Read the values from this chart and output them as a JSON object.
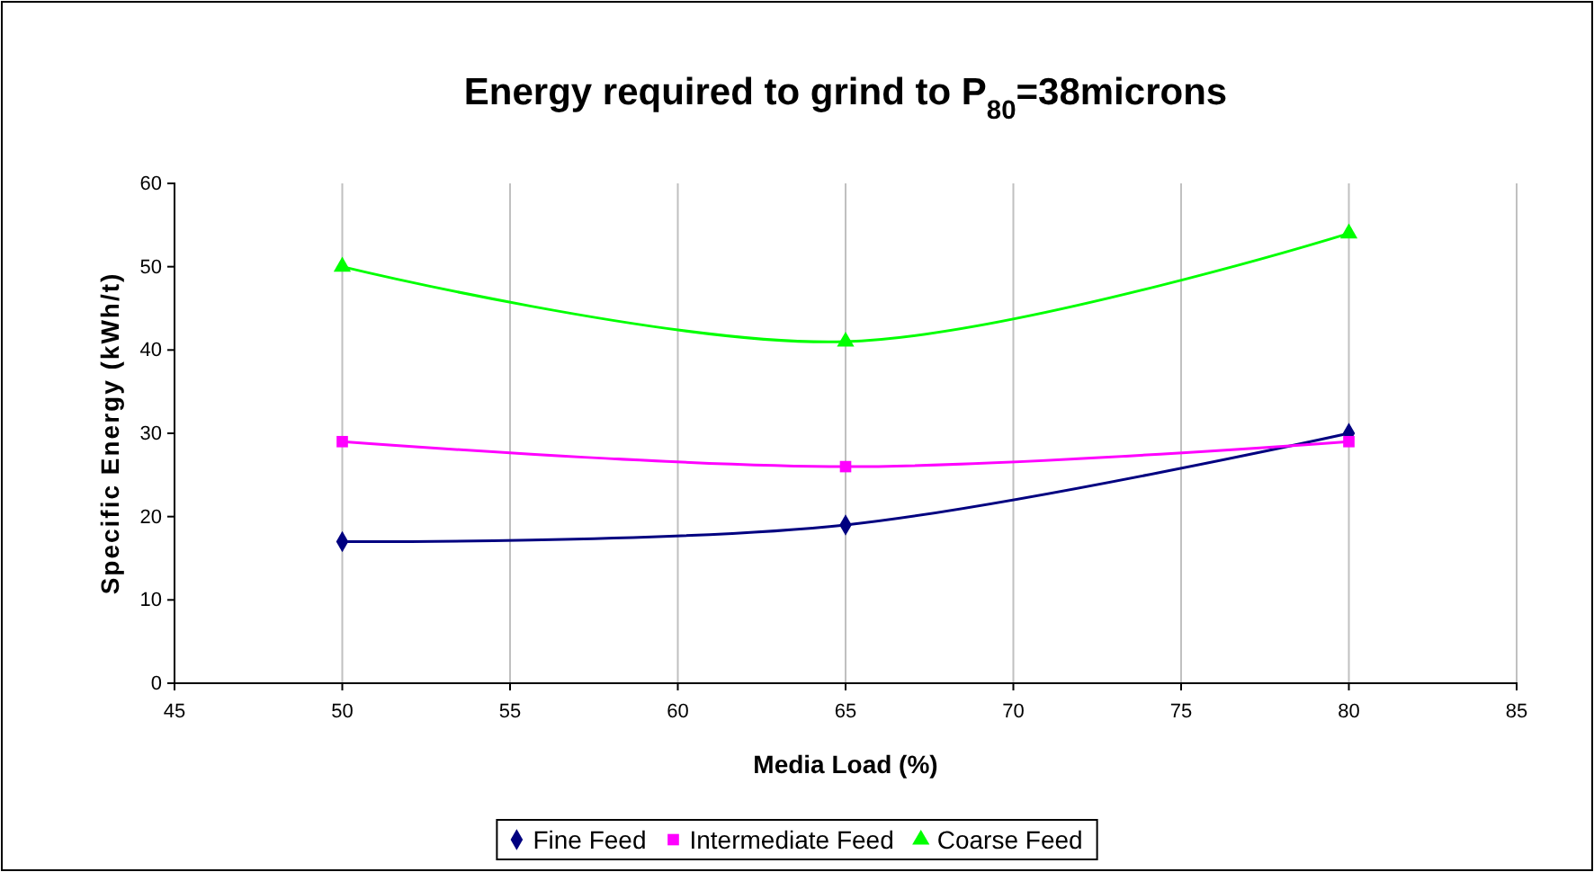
{
  "chart_data": {
    "type": "line",
    "title": "Energy required to grind to P$_{80}$=38microns",
    "xlabel": "Media Load (%)",
    "ylabel": "Specific Energy (kWh/t)",
    "x": [
      50,
      65,
      80
    ],
    "series": [
      {
        "name": "Fine Feed",
        "color": "#000080",
        "marker": "diamond",
        "values": [
          17,
          19,
          30
        ]
      },
      {
        "name": "Intermediate Feed",
        "color": "#ff00ff",
        "marker": "square",
        "values": [
          29,
          26,
          29
        ]
      },
      {
        "name": "Coarse Feed",
        "color": "#00ff00",
        "marker": "triangle",
        "values": [
          50,
          41,
          54
        ]
      }
    ],
    "xlim": [
      45,
      85
    ],
    "xticks": [
      45,
      50,
      55,
      60,
      65,
      70,
      75,
      80,
      85
    ],
    "ylim": [
      0,
      60
    ],
    "yticks": [
      0,
      10,
      20,
      30,
      40,
      50,
      60
    ],
    "grid": "x",
    "legend": "bottom",
    "line_style": "solid"
  }
}
